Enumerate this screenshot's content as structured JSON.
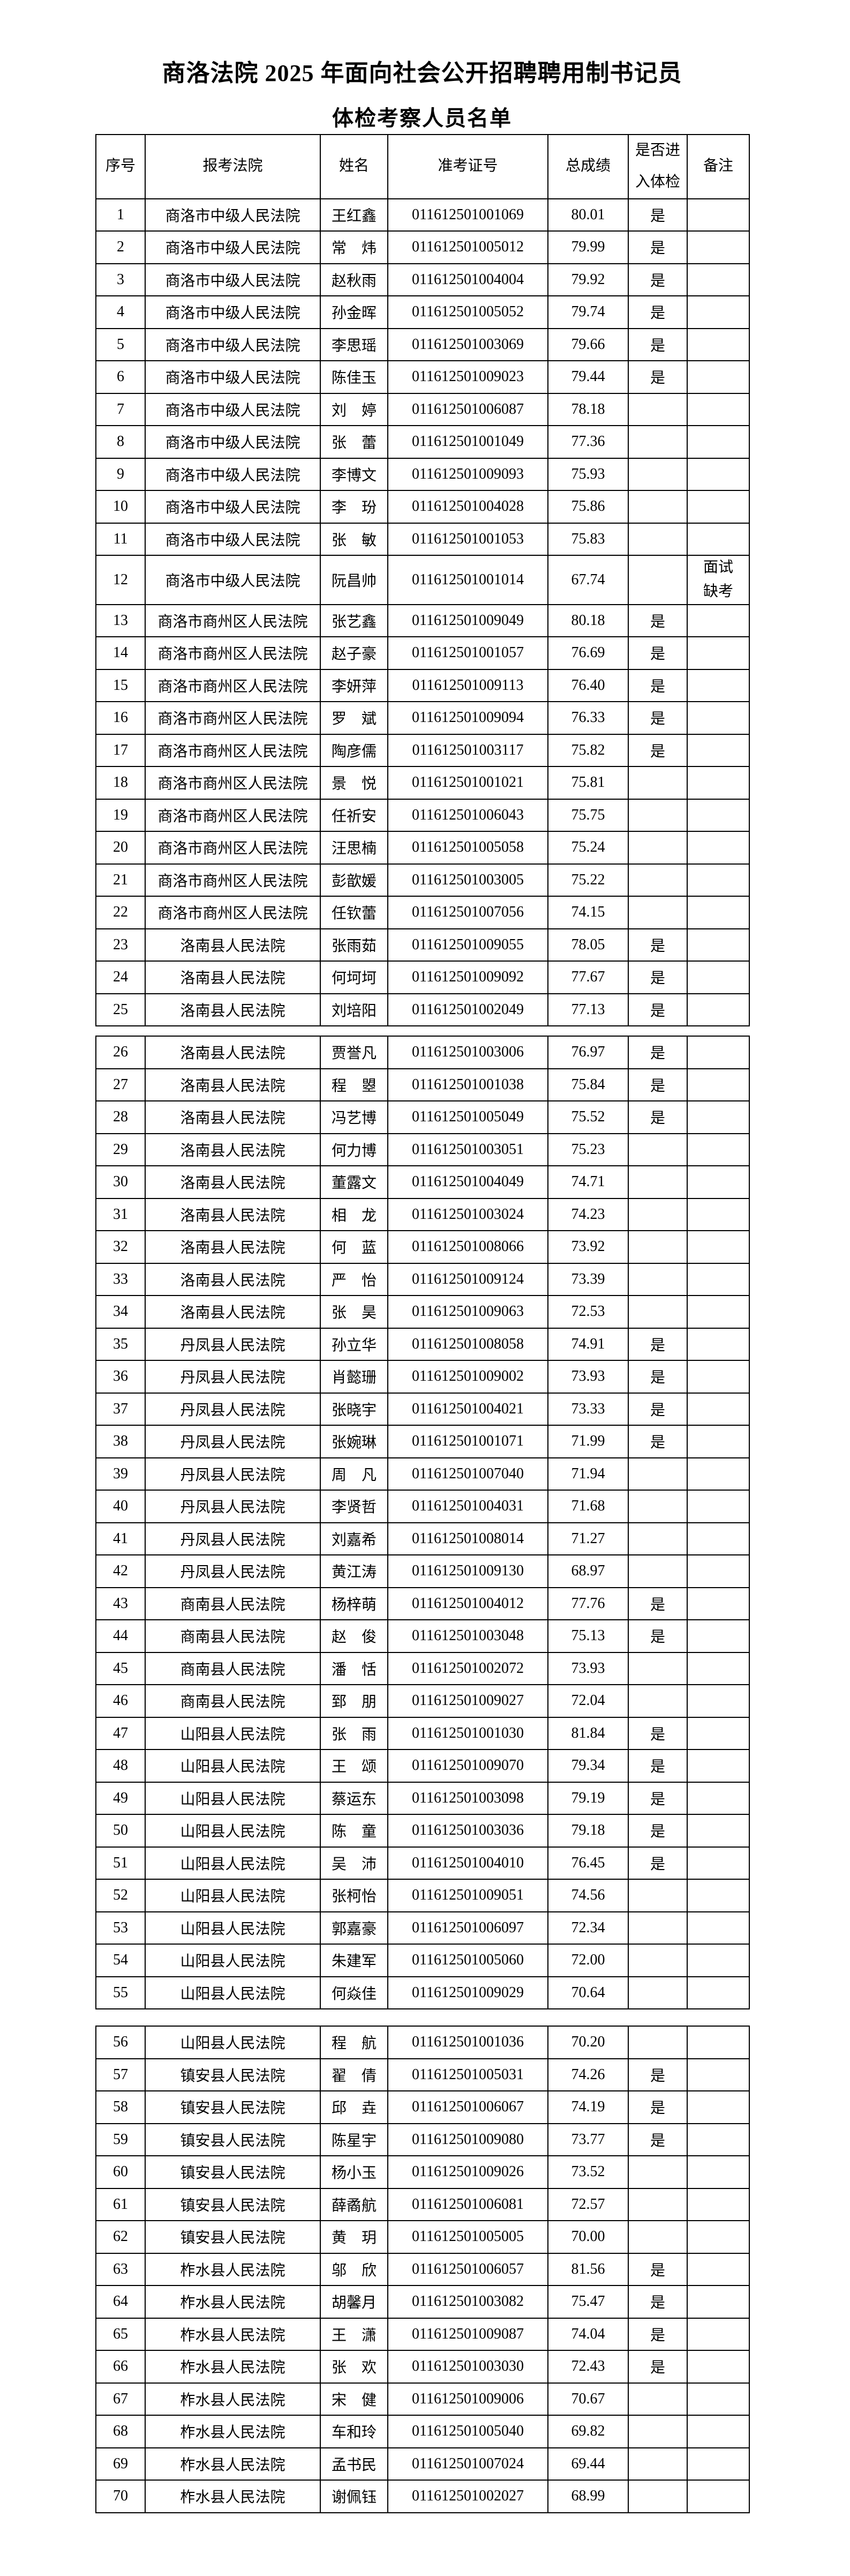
{
  "page": {
    "title": "商洛法院 2025 年面向社会公开招聘聘用制书记员",
    "subtitle": "体检考察人员名单"
  },
  "table": {
    "headers": [
      "序号",
      "报考法院",
      "姓名",
      "准考证号",
      "总成绩",
      "是否进入体检",
      "备注"
    ]
  },
  "rows": [
    {
      "no": "1",
      "court": "商洛市中级人民法院",
      "name": "王红鑫",
      "id": "011612501001069",
      "score": "80.01",
      "pass": "是",
      "remark": ""
    },
    {
      "no": "2",
      "court": "商洛市中级人民法院",
      "name": "常　炜",
      "id": "011612501005012",
      "score": "79.99",
      "pass": "是",
      "remark": ""
    },
    {
      "no": "3",
      "court": "商洛市中级人民法院",
      "name": "赵秋雨",
      "id": "011612501004004",
      "score": "79.92",
      "pass": "是",
      "remark": ""
    },
    {
      "no": "4",
      "court": "商洛市中级人民法院",
      "name": "孙金晖",
      "id": "011612501005052",
      "score": "79.74",
      "pass": "是",
      "remark": ""
    },
    {
      "no": "5",
      "court": "商洛市中级人民法院",
      "name": "李思瑶",
      "id": "011612501003069",
      "score": "79.66",
      "pass": "是",
      "remark": ""
    },
    {
      "no": "6",
      "court": "商洛市中级人民法院",
      "name": "陈佳玉",
      "id": "011612501009023",
      "score": "79.44",
      "pass": "是",
      "remark": ""
    },
    {
      "no": "7",
      "court": "商洛市中级人民法院",
      "name": "刘　婷",
      "id": "011612501006087",
      "score": "78.18",
      "pass": "",
      "remark": ""
    },
    {
      "no": "8",
      "court": "商洛市中级人民法院",
      "name": "张　蕾",
      "id": "011612501001049",
      "score": "77.36",
      "pass": "",
      "remark": ""
    },
    {
      "no": "9",
      "court": "商洛市中级人民法院",
      "name": "李博文",
      "id": "011612501009093",
      "score": "75.93",
      "pass": "",
      "remark": ""
    },
    {
      "no": "10",
      "court": "商洛市中级人民法院",
      "name": "李　玢",
      "id": "011612501004028",
      "score": "75.86",
      "pass": "",
      "remark": ""
    },
    {
      "no": "11",
      "court": "商洛市中级人民法院",
      "name": "张　敏",
      "id": "011612501001053",
      "score": "75.83",
      "pass": "",
      "remark": ""
    },
    {
      "no": "12",
      "court": "商洛市中级人民法院",
      "name": "阮昌帅",
      "id": "011612501001014",
      "score": "67.74",
      "pass": "",
      "remark": "面试缺考"
    },
    {
      "no": "13",
      "court": "商洛市商州区人民法院",
      "name": "张艺鑫",
      "id": "011612501009049",
      "score": "80.18",
      "pass": "是",
      "remark": ""
    },
    {
      "no": "14",
      "court": "商洛市商州区人民法院",
      "name": "赵子豪",
      "id": "011612501001057",
      "score": "76.69",
      "pass": "是",
      "remark": ""
    },
    {
      "no": "15",
      "court": "商洛市商州区人民法院",
      "name": "李妍萍",
      "id": "011612501009113",
      "score": "76.40",
      "pass": "是",
      "remark": ""
    },
    {
      "no": "16",
      "court": "商洛市商州区人民法院",
      "name": "罗　斌",
      "id": "011612501009094",
      "score": "76.33",
      "pass": "是",
      "remark": ""
    },
    {
      "no": "17",
      "court": "商洛市商州区人民法院",
      "name": "陶彦儒",
      "id": "011612501003117",
      "score": "75.82",
      "pass": "是",
      "remark": ""
    },
    {
      "no": "18",
      "court": "商洛市商州区人民法院",
      "name": "景　悦",
      "id": "011612501001021",
      "score": "75.81",
      "pass": "",
      "remark": ""
    },
    {
      "no": "19",
      "court": "商洛市商州区人民法院",
      "name": "任祈安",
      "id": "011612501006043",
      "score": "75.75",
      "pass": "",
      "remark": ""
    },
    {
      "no": "20",
      "court": "商洛市商州区人民法院",
      "name": "汪思楠",
      "id": "011612501005058",
      "score": "75.24",
      "pass": "",
      "remark": ""
    },
    {
      "no": "21",
      "court": "商洛市商州区人民法院",
      "name": "彭歆媛",
      "id": "011612501003005",
      "score": "75.22",
      "pass": "",
      "remark": ""
    },
    {
      "no": "22",
      "court": "商洛市商州区人民法院",
      "name": "任钦蕾",
      "id": "011612501007056",
      "score": "74.15",
      "pass": "",
      "remark": ""
    },
    {
      "no": "23",
      "court": "洛南县人民法院",
      "name": "张雨茹",
      "id": "011612501009055",
      "score": "78.05",
      "pass": "是",
      "remark": ""
    },
    {
      "no": "24",
      "court": "洛南县人民法院",
      "name": "何坷坷",
      "id": "011612501009092",
      "score": "77.67",
      "pass": "是",
      "remark": ""
    },
    {
      "no": "25",
      "court": "洛南县人民法院",
      "name": "刘培阳",
      "id": "011612501002049",
      "score": "77.13",
      "pass": "是",
      "remark": ""
    },
    {
      "no": "26",
      "court": "洛南县人民法院",
      "name": "贾誉凡",
      "id": "011612501003006",
      "score": "76.97",
      "pass": "是",
      "remark": ""
    },
    {
      "no": "27",
      "court": "洛南县人民法院",
      "name": "程　曌",
      "id": "011612501001038",
      "score": "75.84",
      "pass": "是",
      "remark": ""
    },
    {
      "no": "28",
      "court": "洛南县人民法院",
      "name": "冯艺博",
      "id": "011612501005049",
      "score": "75.52",
      "pass": "是",
      "remark": ""
    },
    {
      "no": "29",
      "court": "洛南县人民法院",
      "name": "何力博",
      "id": "011612501003051",
      "score": "75.23",
      "pass": "",
      "remark": ""
    },
    {
      "no": "30",
      "court": "洛南县人民法院",
      "name": "董露文",
      "id": "011612501004049",
      "score": "74.71",
      "pass": "",
      "remark": ""
    },
    {
      "no": "31",
      "court": "洛南县人民法院",
      "name": "相　龙",
      "id": "011612501003024",
      "score": "74.23",
      "pass": "",
      "remark": ""
    },
    {
      "no": "32",
      "court": "洛南县人民法院",
      "name": "何　蓝",
      "id": "011612501008066",
      "score": "73.92",
      "pass": "",
      "remark": ""
    },
    {
      "no": "33",
      "court": "洛南县人民法院",
      "name": "严　怡",
      "id": "011612501009124",
      "score": "73.39",
      "pass": "",
      "remark": ""
    },
    {
      "no": "34",
      "court": "洛南县人民法院",
      "name": "张　昊",
      "id": "011612501009063",
      "score": "72.53",
      "pass": "",
      "remark": ""
    },
    {
      "no": "35",
      "court": "丹凤县人民法院",
      "name": "孙立华",
      "id": "011612501008058",
      "score": "74.91",
      "pass": "是",
      "remark": ""
    },
    {
      "no": "36",
      "court": "丹凤县人民法院",
      "name": "肖懿珊",
      "id": "011612501009002",
      "score": "73.93",
      "pass": "是",
      "remark": ""
    },
    {
      "no": "37",
      "court": "丹凤县人民法院",
      "name": "张晓宇",
      "id": "011612501004021",
      "score": "73.33",
      "pass": "是",
      "remark": ""
    },
    {
      "no": "38",
      "court": "丹凤县人民法院",
      "name": "张婉琳",
      "id": "011612501001071",
      "score": "71.99",
      "pass": "是",
      "remark": ""
    },
    {
      "no": "39",
      "court": "丹凤县人民法院",
      "name": "周　凡",
      "id": "011612501007040",
      "score": "71.94",
      "pass": "",
      "remark": ""
    },
    {
      "no": "40",
      "court": "丹凤县人民法院",
      "name": "李贤哲",
      "id": "011612501004031",
      "score": "71.68",
      "pass": "",
      "remark": ""
    },
    {
      "no": "41",
      "court": "丹凤县人民法院",
      "name": "刘嘉希",
      "id": "011612501008014",
      "score": "71.27",
      "pass": "",
      "remark": ""
    },
    {
      "no": "42",
      "court": "丹凤县人民法院",
      "name": "黄江涛",
      "id": "011612501009130",
      "score": "68.97",
      "pass": "",
      "remark": ""
    },
    {
      "no": "43",
      "court": "商南县人民法院",
      "name": "杨梓萌",
      "id": "011612501004012",
      "score": "77.76",
      "pass": "是",
      "remark": ""
    },
    {
      "no": "44",
      "court": "商南县人民法院",
      "name": "赵　俊",
      "id": "011612501003048",
      "score": "75.13",
      "pass": "是",
      "remark": ""
    },
    {
      "no": "45",
      "court": "商南县人民法院",
      "name": "潘　恬",
      "id": "011612501002072",
      "score": "73.93",
      "pass": "",
      "remark": ""
    },
    {
      "no": "46",
      "court": "商南县人民法院",
      "name": "郅　朋",
      "id": "011612501009027",
      "score": "72.04",
      "pass": "",
      "remark": ""
    },
    {
      "no": "47",
      "court": "山阳县人民法院",
      "name": "张　雨",
      "id": "011612501001030",
      "score": "81.84",
      "pass": "是",
      "remark": ""
    },
    {
      "no": "48",
      "court": "山阳县人民法院",
      "name": "王　颂",
      "id": "011612501009070",
      "score": "79.34",
      "pass": "是",
      "remark": ""
    },
    {
      "no": "49",
      "court": "山阳县人民法院",
      "name": "蔡运东",
      "id": "011612501003098",
      "score": "79.19",
      "pass": "是",
      "remark": ""
    },
    {
      "no": "50",
      "court": "山阳县人民法院",
      "name": "陈　童",
      "id": "011612501003036",
      "score": "79.18",
      "pass": "是",
      "remark": ""
    },
    {
      "no": "51",
      "court": "山阳县人民法院",
      "name": "吴　沛",
      "id": "011612501004010",
      "score": "76.45",
      "pass": "是",
      "remark": ""
    },
    {
      "no": "52",
      "court": "山阳县人民法院",
      "name": "张柯怡",
      "id": "011612501009051",
      "score": "74.56",
      "pass": "",
      "remark": ""
    },
    {
      "no": "53",
      "court": "山阳县人民法院",
      "name": "郭嘉豪",
      "id": "011612501006097",
      "score": "72.34",
      "pass": "",
      "remark": ""
    },
    {
      "no": "54",
      "court": "山阳县人民法院",
      "name": "朱建军",
      "id": "011612501005060",
      "score": "72.00",
      "pass": "",
      "remark": ""
    },
    {
      "no": "55",
      "court": "山阳县人民法院",
      "name": "何焱佳",
      "id": "011612501009029",
      "score": "70.64",
      "pass": "",
      "remark": ""
    },
    {
      "no": "56",
      "court": "山阳县人民法院",
      "name": "程　航",
      "id": "011612501001036",
      "score": "70.20",
      "pass": "",
      "remark": ""
    },
    {
      "no": "57",
      "court": "镇安县人民法院",
      "name": "翟　倩",
      "id": "011612501005031",
      "score": "74.26",
      "pass": "是",
      "remark": ""
    },
    {
      "no": "58",
      "court": "镇安县人民法院",
      "name": "邱　垚",
      "id": "011612501006067",
      "score": "74.19",
      "pass": "是",
      "remark": ""
    },
    {
      "no": "59",
      "court": "镇安县人民法院",
      "name": "陈星宇",
      "id": "011612501009080",
      "score": "73.77",
      "pass": "是",
      "remark": ""
    },
    {
      "no": "60",
      "court": "镇安县人民法院",
      "name": "杨小玉",
      "id": "011612501009026",
      "score": "73.52",
      "pass": "",
      "remark": ""
    },
    {
      "no": "61",
      "court": "镇安县人民法院",
      "name": "薛矞航",
      "id": "011612501006081",
      "score": "72.57",
      "pass": "",
      "remark": ""
    },
    {
      "no": "62",
      "court": "镇安县人民法院",
      "name": "黄　玥",
      "id": "011612501005005",
      "score": "70.00",
      "pass": "",
      "remark": ""
    },
    {
      "no": "63",
      "court": "柞水县人民法院",
      "name": "邬　欣",
      "id": "011612501006057",
      "score": "81.56",
      "pass": "是",
      "remark": ""
    },
    {
      "no": "64",
      "court": "柞水县人民法院",
      "name": "胡馨月",
      "id": "011612501003082",
      "score": "75.47",
      "pass": "是",
      "remark": ""
    },
    {
      "no": "65",
      "court": "柞水县人民法院",
      "name": "王　潇",
      "id": "011612501009087",
      "score": "74.04",
      "pass": "是",
      "remark": ""
    },
    {
      "no": "66",
      "court": "柞水县人民法院",
      "name": "张　欢",
      "id": "011612501003030",
      "score": "72.43",
      "pass": "是",
      "remark": ""
    },
    {
      "no": "67",
      "court": "柞水县人民法院",
      "name": "宋　健",
      "id": "011612501009006",
      "score": "70.67",
      "pass": "",
      "remark": ""
    },
    {
      "no": "68",
      "court": "柞水县人民法院",
      "name": "车和玲",
      "id": "011612501005040",
      "score": "69.82",
      "pass": "",
      "remark": ""
    },
    {
      "no": "69",
      "court": "柞水县人民法院",
      "name": "孟书民",
      "id": "011612501007024",
      "score": "69.44",
      "pass": "",
      "remark": ""
    },
    {
      "no": "70",
      "court": "柞水县人民法院",
      "name": "谢佩钰",
      "id": "011612501002027",
      "score": "68.99",
      "pass": "",
      "remark": ""
    }
  ],
  "sections": [
    {
      "start": 1,
      "end": 25
    },
    {
      "start": 26,
      "end": 55
    },
    {
      "start": 56,
      "end": 70
    }
  ]
}
